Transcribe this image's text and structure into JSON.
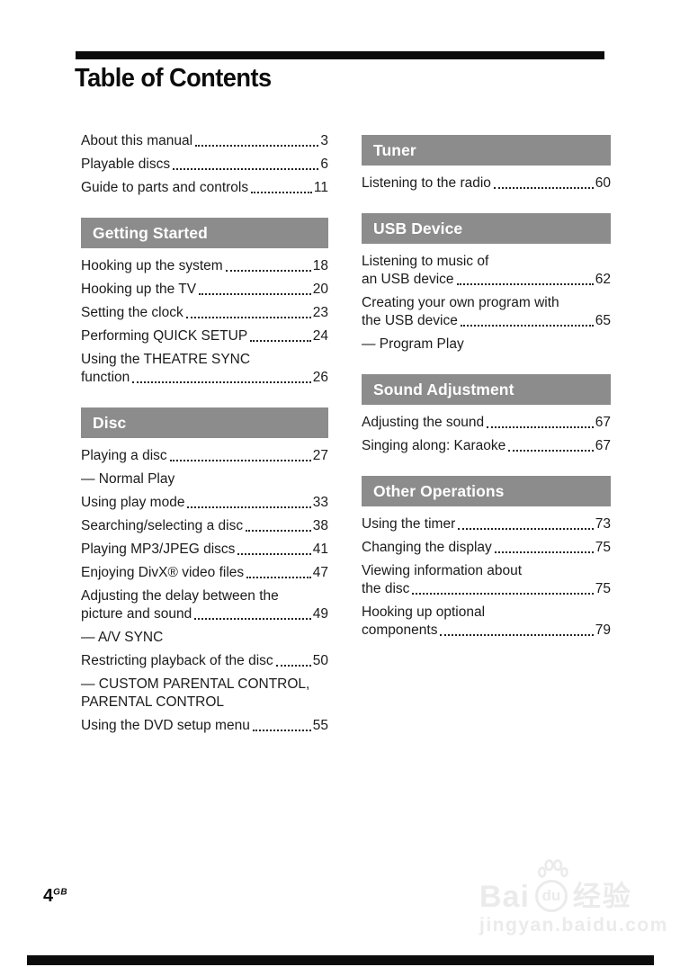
{
  "title": "Table of Contents",
  "columns": {
    "left": [
      {
        "header": null,
        "items": [
          {
            "text": "About this manual",
            "page": "3"
          },
          {
            "text": "Playable discs",
            "page": "6"
          },
          {
            "text": "Guide to parts and controls",
            "page": "11"
          }
        ]
      },
      {
        "header": "Getting Started",
        "items": [
          {
            "text": "Hooking up the system",
            "page": "18"
          },
          {
            "text": "Hooking up the TV",
            "page": "20"
          },
          {
            "text": "Setting the clock",
            "page": "23"
          },
          {
            "text": "Performing QUICK SETUP",
            "page": "24"
          },
          {
            "pre": "Using the THEATRE SYNC",
            "text": "function",
            "page": "26"
          }
        ]
      },
      {
        "header": "Disc",
        "items": [
          {
            "text": "Playing a disc",
            "page": "27"
          },
          {
            "text": "— Normal Play"
          },
          {
            "text": "Using play mode",
            "page": "33"
          },
          {
            "text": "Searching/selecting a disc",
            "page": "38"
          },
          {
            "text": "Playing MP3/JPEG discs",
            "page": "41"
          },
          {
            "text": "Enjoying DivX® video files",
            "page": "47"
          },
          {
            "pre": "Adjusting the delay between the",
            "text": "picture and sound",
            "page": "49"
          },
          {
            "text": "— A/V SYNC"
          },
          {
            "text": "Restricting playback of the disc",
            "page": "50"
          },
          {
            "pre": "— CUSTOM PARENTAL CONTROL,",
            "text": "PARENTAL CONTROL"
          },
          {
            "text": "Using the DVD setup menu",
            "page": "55"
          }
        ]
      }
    ],
    "right": [
      {
        "header": "Tuner",
        "items": [
          {
            "text": "Listening to the radio",
            "page": "60"
          }
        ]
      },
      {
        "header": "USB Device",
        "items": [
          {
            "pre": "Listening to music of",
            "text": "an USB device",
            "page": "62"
          },
          {
            "pre": "Creating your own program with",
            "text": "the USB device",
            "page": "65"
          },
          {
            "text": "— Program Play"
          }
        ]
      },
      {
        "header": "Sound Adjustment",
        "items": [
          {
            "text": "Adjusting the sound",
            "page": "67"
          },
          {
            "text": "Singing along: Karaoke",
            "page": "67"
          }
        ]
      },
      {
        "header": "Other Operations",
        "items": [
          {
            "text": "Using the timer",
            "page": "73"
          },
          {
            "text": "Changing the display",
            "page": "75"
          },
          {
            "pre": "Viewing information about",
            "text": "the disc",
            "page": "75"
          },
          {
            "pre": "Hooking up optional",
            "text": "components",
            "page": "79"
          }
        ]
      }
    ]
  },
  "footer": {
    "page_number": "4",
    "page_region": "GB"
  },
  "watermark": {
    "brand_left": "Bai",
    "brand_circle": "du",
    "brand_cn": "经验",
    "url": "jingyan.baidu.com",
    "paw_icon": "paw-icon"
  },
  "colors": {
    "section_bar": "#8c8c8c",
    "rule": "#0c0c0c",
    "text": "#1b1b1b",
    "watermark": "#ebebeb"
  }
}
